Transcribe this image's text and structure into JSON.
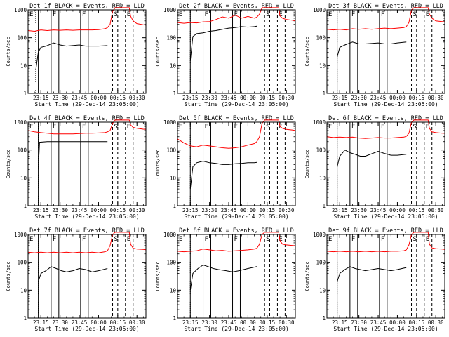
{
  "figure": {
    "x_axis_label": "Start Time (29-Dec-14 23:05:00)",
    "y_axis_label": "Counts/sec",
    "x_ticks": [
      "23:15",
      "23:30",
      "23:45",
      "00:00",
      "00:15",
      "00:30"
    ],
    "y_ticks": [
      "1",
      "10",
      "100",
      "1000"
    ],
    "series_colors": {
      "events": "#000000",
      "lld": "#ff0000"
    }
  },
  "chart_data": [
    {
      "type": "line",
      "title": "Det 1f BLACK = Events, RED = LLD",
      "y_scale": "log",
      "ylim": [
        1,
        1000
      ],
      "xlim_minutes": [
        0,
        92
      ],
      "x_tick_minutes": [
        10,
        25,
        40,
        55,
        70,
        85
      ],
      "event_start": 6,
      "events": {
        "x": [
          6,
          8,
          10,
          14,
          20,
          25,
          30,
          40,
          45,
          50,
          55,
          62
        ],
        "y": [
          7,
          30,
          45,
          50,
          65,
          55,
          50,
          55,
          50,
          50,
          50,
          52
        ]
      },
      "lld": {
        "x": [
          0,
          5,
          10,
          15,
          20,
          25,
          30,
          35,
          40,
          45,
          50,
          55,
          60,
          62,
          64,
          66,
          68,
          75,
          79,
          80,
          82,
          85,
          90,
          92
        ],
        "y": [
          180,
          170,
          190,
          180,
          190,
          185,
          190,
          185,
          190,
          190,
          190,
          195,
          210,
          230,
          300,
          900,
          1200,
          1200,
          1200,
          600,
          400,
          320,
          290,
          280
        ]
      },
      "markers": [
        {
          "label": "E",
          "style": "solid",
          "x_start": 0,
          "x_end": 8
        },
        {
          "label": "F",
          "style": "solid",
          "x_start": 18,
          "x_end": 24
        },
        {
          "label": "F",
          "style": "solid",
          "x_start": 41,
          "x_end": 47
        },
        {
          "label": "S",
          "style": "dashed",
          "x_start": 66,
          "x_end": 70
        },
        {
          "label": "E",
          "style": "dashed",
          "x_start": 76,
          "x_end": 82
        }
      ]
    },
    {
      "type": "line",
      "title": "Det 2f BLACK = Events, RED = LLD",
      "y_scale": "log",
      "ylim": [
        1,
        1000
      ],
      "xlim_minutes": [
        0,
        92
      ],
      "x_tick_minutes": [
        10,
        25,
        40,
        55,
        70,
        85
      ],
      "event_start": 10,
      "events": {
        "x": [
          10,
          12,
          15,
          20,
          25,
          30,
          35,
          40,
          45,
          50,
          55,
          60,
          62
        ],
        "y": [
          15,
          110,
          140,
          150,
          170,
          180,
          200,
          220,
          230,
          250,
          240,
          250,
          260
        ]
      },
      "lld": {
        "x": [
          0,
          5,
          10,
          15,
          20,
          25,
          30,
          35,
          40,
          45,
          50,
          55,
          60,
          62,
          64,
          66,
          68,
          75,
          79,
          80,
          82,
          85,
          90,
          92
        ],
        "y": [
          350,
          330,
          350,
          340,
          370,
          380,
          450,
          560,
          500,
          650,
          500,
          580,
          500,
          550,
          700,
          1200,
          1200,
          1200,
          1200,
          600,
          500,
          450,
          420,
          400
        ]
      },
      "markers": [
        {
          "label": "E",
          "style": "solid",
          "x_start": 0,
          "x_end": 10
        },
        {
          "label": "F",
          "style": "solid",
          "x_start": 20,
          "x_end": 26
        },
        {
          "label": "F",
          "style": "solid",
          "x_start": 43,
          "x_end": 49
        },
        {
          "label": "S",
          "style": "dashed",
          "x_start": 68,
          "x_end": 72
        },
        {
          "label": "E",
          "style": "dashed",
          "x_start": 78,
          "x_end": 84
        }
      ]
    },
    {
      "type": "line",
      "title": "Det 3f BLACK = Events, RED = LLD",
      "y_scale": "log",
      "ylim": [
        1,
        1000
      ],
      "xlim_minutes": [
        0,
        92
      ],
      "x_tick_minutes": [
        10,
        25,
        40,
        55,
        70,
        85
      ],
      "event_start": 8,
      "events": {
        "x": [
          8,
          10,
          14,
          20,
          25,
          30,
          40,
          45,
          50,
          55,
          62
        ],
        "y": [
          20,
          45,
          55,
          70,
          60,
          60,
          65,
          60,
          60,
          65,
          70
        ]
      },
      "lld": {
        "x": [
          0,
          5,
          10,
          15,
          20,
          25,
          30,
          35,
          40,
          45,
          50,
          55,
          60,
          62,
          64,
          66,
          68,
          75,
          79,
          80,
          82,
          85,
          90,
          92
        ],
        "y": [
          200,
          190,
          200,
          190,
          210,
          200,
          210,
          200,
          210,
          220,
          210,
          220,
          230,
          250,
          350,
          1000,
          1200,
          1200,
          1200,
          700,
          500,
          400,
          380,
          370
        ]
      },
      "markers": [
        {
          "label": "E",
          "style": "solid",
          "x_start": 0,
          "x_end": 8
        },
        {
          "label": "F",
          "style": "solid",
          "x_start": 18,
          "x_end": 24
        },
        {
          "label": "F",
          "style": "solid",
          "x_start": 41,
          "x_end": 47
        },
        {
          "label": "S",
          "style": "dashed",
          "x_start": 66,
          "x_end": 70
        },
        {
          "label": "E",
          "style": "dashed",
          "x_start": 76,
          "x_end": 82
        }
      ]
    },
    {
      "type": "line",
      "title": "Det 4f BLACK = Events, RED = LLD",
      "y_scale": "log",
      "ylim": [
        1,
        1000
      ],
      "xlim_minutes": [
        0,
        92
      ],
      "x_tick_minutes": [
        10,
        25,
        40,
        55,
        70,
        85
      ],
      "event_start": 8,
      "events": {
        "x": [
          8,
          9,
          15,
          25,
          35,
          45,
          55,
          62
        ],
        "y": [
          20,
          190,
          200,
          200,
          200,
          200,
          200,
          200
        ]
      },
      "lld": {
        "x": [
          0,
          5,
          10,
          15,
          20,
          25,
          30,
          35,
          40,
          45,
          50,
          55,
          60,
          62,
          64,
          66,
          68,
          75,
          79,
          80,
          82,
          85,
          90,
          92
        ],
        "y": [
          500,
          450,
          420,
          400,
          380,
          380,
          380,
          380,
          390,
          400,
          400,
          410,
          420,
          450,
          500,
          900,
          1200,
          1200,
          1200,
          800,
          650,
          600,
          560,
          550
        ]
      },
      "markers": [
        {
          "label": "E",
          "style": "solid",
          "x_start": 0,
          "x_end": 8
        },
        {
          "label": "F",
          "style": "solid",
          "x_start": 18,
          "x_end": 24
        },
        {
          "label": "F",
          "style": "solid",
          "x_start": 41,
          "x_end": 47
        },
        {
          "label": "S",
          "style": "dashed",
          "x_start": 66,
          "x_end": 70
        },
        {
          "label": "E",
          "style": "dashed",
          "x_start": 76,
          "x_end": 82
        }
      ]
    },
    {
      "type": "line",
      "title": "Det 5f BLACK = Events, RED = LLD",
      "y_scale": "log",
      "ylim": [
        1,
        1000
      ],
      "xlim_minutes": [
        0,
        92
      ],
      "x_tick_minutes": [
        10,
        25,
        40,
        55,
        70,
        85
      ],
      "event_start": 10,
      "events": {
        "x": [
          10,
          12,
          15,
          20,
          25,
          30,
          35,
          40,
          45,
          50,
          55,
          60,
          62
        ],
        "y": [
          4,
          25,
          35,
          40,
          35,
          33,
          30,
          30,
          32,
          33,
          35,
          35,
          36
        ]
      },
      "lld": {
        "x": [
          0,
          5,
          10,
          15,
          20,
          25,
          30,
          35,
          40,
          45,
          50,
          55,
          60,
          62,
          64,
          66,
          68,
          75,
          79,
          80,
          82,
          85,
          90,
          92
        ],
        "y": [
          250,
          180,
          140,
          130,
          150,
          140,
          130,
          120,
          115,
          120,
          130,
          150,
          170,
          200,
          300,
          900,
          1200,
          1200,
          1200,
          700,
          600,
          550,
          520,
          500
        ]
      },
      "markers": [
        {
          "label": "E",
          "style": "solid",
          "x_start": 0,
          "x_end": 10
        },
        {
          "label": "F",
          "style": "solid",
          "x_start": 20,
          "x_end": 26
        },
        {
          "label": "F",
          "style": "solid",
          "x_start": 43,
          "x_end": 49
        },
        {
          "label": "S",
          "style": "dashed",
          "x_start": 68,
          "x_end": 72
        },
        {
          "label": "E",
          "style": "dashed",
          "x_start": 78,
          "x_end": 84
        }
      ]
    },
    {
      "type": "line",
      "title": "Det 6f BLACK = Events, RED = LLD",
      "y_scale": "log",
      "ylim": [
        1,
        1000
      ],
      "xlim_minutes": [
        0,
        92
      ],
      "x_tick_minutes": [
        10,
        25,
        40,
        55,
        70,
        85
      ],
      "event_start": 8,
      "events": {
        "x": [
          8,
          10,
          14,
          18,
          22,
          26,
          30,
          40,
          45,
          50,
          55,
          62
        ],
        "y": [
          25,
          60,
          100,
          80,
          70,
          60,
          60,
          90,
          75,
          65,
          65,
          70
        ]
      },
      "lld": {
        "x": [
          0,
          5,
          10,
          15,
          20,
          25,
          30,
          35,
          40,
          45,
          50,
          55,
          60,
          62,
          64,
          66,
          68,
          75,
          79,
          80,
          82,
          85,
          90,
          92
        ],
        "y": [
          300,
          280,
          290,
          280,
          290,
          270,
          260,
          270,
          280,
          270,
          270,
          280,
          290,
          310,
          400,
          1000,
          1200,
          1200,
          1200,
          600,
          450,
          420,
          400,
          400
        ]
      },
      "markers": [
        {
          "label": "E",
          "style": "solid",
          "x_start": 0,
          "x_end": 8
        },
        {
          "label": "F",
          "style": "solid",
          "x_start": 18,
          "x_end": 24
        },
        {
          "label": "F",
          "style": "solid",
          "x_start": 41,
          "x_end": 47
        },
        {
          "label": "S",
          "style": "dashed",
          "x_start": 66,
          "x_end": 70
        },
        {
          "label": "E",
          "style": "dashed",
          "x_start": 76,
          "x_end": 82
        }
      ]
    },
    {
      "type": "line",
      "title": "Det 7f BLACK = Events, RED = LLD",
      "y_scale": "log",
      "ylim": [
        1,
        1000
      ],
      "xlim_minutes": [
        0,
        92
      ],
      "x_tick_minutes": [
        10,
        25,
        40,
        55,
        70,
        85
      ],
      "event_start": 8,
      "events": {
        "x": [
          8,
          10,
          14,
          18,
          22,
          26,
          30,
          35,
          40,
          45,
          50,
          55,
          62
        ],
        "y": [
          20,
          40,
          50,
          70,
          60,
          50,
          45,
          50,
          60,
          55,
          45,
          50,
          60
        ]
      },
      "lld": {
        "x": [
          0,
          5,
          10,
          15,
          20,
          25,
          30,
          35,
          40,
          45,
          50,
          55,
          60,
          62,
          64,
          66,
          68,
          75,
          79,
          80,
          82,
          85,
          90,
          92
        ],
        "y": [
          230,
          220,
          230,
          220,
          230,
          220,
          230,
          220,
          230,
          220,
          230,
          220,
          240,
          260,
          400,
          1000,
          1200,
          1200,
          1200,
          450,
          320,
          300,
          290,
          280
        ]
      },
      "markers": [
        {
          "label": "E",
          "style": "solid",
          "x_start": 0,
          "x_end": 8
        },
        {
          "label": "F",
          "style": "solid",
          "x_start": 18,
          "x_end": 24
        },
        {
          "label": "F",
          "style": "solid",
          "x_start": 41,
          "x_end": 47
        },
        {
          "label": "S",
          "style": "dashed",
          "x_start": 66,
          "x_end": 70
        },
        {
          "label": "E",
          "style": "dashed",
          "x_start": 76,
          "x_end": 82
        }
      ]
    },
    {
      "type": "line",
      "title": "Det 8f BLACK = Events, RED = LLD",
      "y_scale": "log",
      "ylim": [
        1,
        1000
      ],
      "xlim_minutes": [
        0,
        92
      ],
      "x_tick_minutes": [
        10,
        25,
        40,
        55,
        70,
        85
      ],
      "event_start": 10,
      "events": {
        "x": [
          10,
          12,
          16,
          20,
          24,
          28,
          32,
          38,
          43,
          48,
          55,
          62
        ],
        "y": [
          10,
          40,
          60,
          80,
          70,
          60,
          55,
          50,
          45,
          50,
          60,
          70
        ]
      },
      "lld": {
        "x": [
          0,
          5,
          10,
          15,
          20,
          25,
          30,
          35,
          40,
          45,
          50,
          55,
          60,
          62,
          64,
          66,
          68,
          75,
          79,
          80,
          82,
          85,
          90,
          92
        ],
        "y": [
          250,
          240,
          250,
          260,
          300,
          280,
          260,
          270,
          250,
          260,
          270,
          280,
          300,
          320,
          450,
          1000,
          1200,
          1200,
          1200,
          600,
          450,
          420,
          400,
          390
        ]
      },
      "markers": [
        {
          "label": "E",
          "style": "solid",
          "x_start": 0,
          "x_end": 10
        },
        {
          "label": "F",
          "style": "solid",
          "x_start": 20,
          "x_end": 26
        },
        {
          "label": "F",
          "style": "solid",
          "x_start": 43,
          "x_end": 49
        },
        {
          "label": "S",
          "style": "dashed",
          "x_start": 68,
          "x_end": 72
        },
        {
          "label": "E",
          "style": "dashed",
          "x_start": 78,
          "x_end": 84
        }
      ]
    },
    {
      "type": "line",
      "title": "Det 9f BLACK = Events, RED = LLD",
      "y_scale": "log",
      "ylim": [
        1,
        1000
      ],
      "xlim_minutes": [
        0,
        92
      ],
      "x_tick_minutes": [
        10,
        25,
        40,
        55,
        70,
        85
      ],
      "event_start": 8,
      "events": {
        "x": [
          8,
          10,
          14,
          18,
          22,
          26,
          30,
          35,
          40,
          45,
          50,
          55,
          62
        ],
        "y": [
          20,
          40,
          55,
          70,
          60,
          55,
          50,
          55,
          60,
          55,
          50,
          55,
          65
        ]
      },
      "lld": {
        "x": [
          0,
          5,
          10,
          15,
          20,
          25,
          30,
          35,
          40,
          45,
          50,
          55,
          60,
          62,
          64,
          66,
          68,
          75,
          79,
          80,
          82,
          85,
          90,
          92
        ],
        "y": [
          250,
          240,
          250,
          240,
          250,
          240,
          250,
          240,
          250,
          240,
          250,
          250,
          260,
          280,
          420,
          1000,
          1200,
          1200,
          1200,
          450,
          330,
          310,
          300,
          290
        ]
      },
      "markers": [
        {
          "label": "E",
          "style": "solid",
          "x_start": 0,
          "x_end": 8
        },
        {
          "label": "F",
          "style": "solid",
          "x_start": 18,
          "x_end": 24
        },
        {
          "label": "F",
          "style": "solid",
          "x_start": 41,
          "x_end": 47
        },
        {
          "label": "S",
          "style": "dashed",
          "x_start": 66,
          "x_end": 70
        },
        {
          "label": "E",
          "style": "dashed",
          "x_start": 76,
          "x_end": 82
        }
      ]
    }
  ]
}
